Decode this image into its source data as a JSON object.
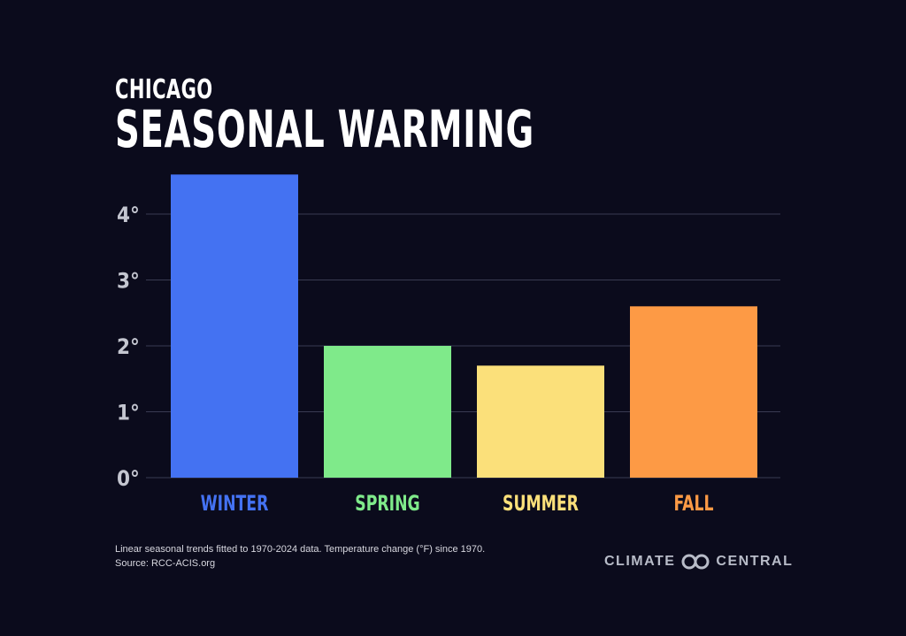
{
  "chart_data": {
    "type": "bar",
    "subtitle": "CHICAGO",
    "title": "SEASONAL WARMING",
    "categories": [
      "WINTER",
      "SPRING",
      "SUMMER",
      "FALL"
    ],
    "values": [
      4.6,
      2.0,
      1.7,
      2.6
    ],
    "colors": [
      "#4472f2",
      "#7fea8a",
      "#fbe07a",
      "#fd9a45"
    ],
    "ylim": [
      0,
      4.6
    ],
    "yticks": [
      0,
      1,
      2,
      3,
      4
    ],
    "ytick_labels": [
      "0°",
      "1°",
      "2°",
      "3°",
      "4°"
    ],
    "grid": true,
    "unit": "°F"
  },
  "footer": {
    "note": "Linear seasonal trends fitted to 1970-2024 data. Temperature change (°F) since 1970.",
    "source": "Source: RCC-ACIS.org",
    "logo_left": "CLIMATE",
    "logo_right": "CENTRAL"
  }
}
